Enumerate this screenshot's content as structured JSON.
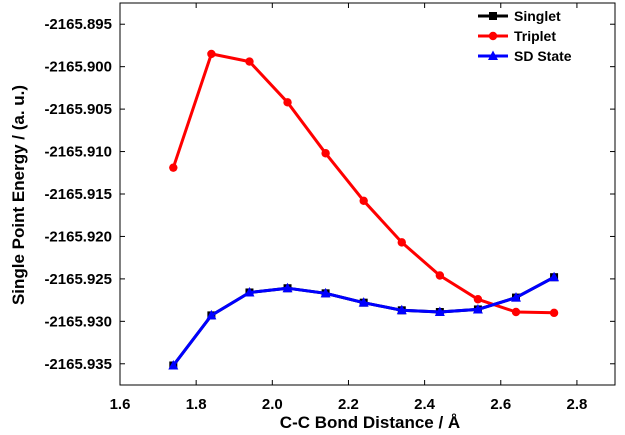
{
  "chart_data": {
    "type": "line",
    "xlabel": "C-C Bond Distance / Å",
    "ylabel": "Single Point Energy / (a. u.)",
    "xlim": [
      1.6,
      2.9
    ],
    "ylim": [
      -2165.9375,
      -2165.8925
    ],
    "xticks": [
      "1.6",
      "1.8",
      "2.0",
      "2.2",
      "2.4",
      "2.6",
      "2.8"
    ],
    "yticks": [
      "-2165.895",
      "-2165.900",
      "-2165.905",
      "-2165.910",
      "-2165.915",
      "-2165.920",
      "-2165.925",
      "-2165.930",
      "-2165.935"
    ],
    "legend_position": "top-right",
    "grid": false,
    "series": [
      {
        "name": "Singlet",
        "color": "#000000",
        "marker": "square",
        "x": [
          1.74,
          1.84,
          1.94,
          2.04,
          2.14,
          2.24,
          2.34,
          2.44,
          2.54,
          2.64,
          2.74
        ],
        "y": [
          -2165.9352,
          -2165.9293,
          -2165.9266,
          -2165.9261,
          -2165.9267,
          -2165.9278,
          -2165.9287,
          -2165.9289,
          -2165.9286,
          -2165.9272,
          -2165.9248
        ]
      },
      {
        "name": "Triplet",
        "color": "#ff0000",
        "marker": "circle",
        "x": [
          1.74,
          1.84,
          1.94,
          2.04,
          2.14,
          2.24,
          2.34,
          2.44,
          2.54,
          2.64,
          2.74
        ],
        "y": [
          -2165.9119,
          -2165.8985,
          -2165.8994,
          -2165.9042,
          -2165.9102,
          -2165.9158,
          -2165.9207,
          -2165.9246,
          -2165.9274,
          -2165.9289,
          -2165.929
        ]
      },
      {
        "name": "SD State",
        "color": "#0000ff",
        "marker": "triangle",
        "x": [
          1.74,
          1.84,
          1.94,
          2.04,
          2.14,
          2.24,
          2.34,
          2.44,
          2.54,
          2.64,
          2.74
        ],
        "y": [
          -2165.9352,
          -2165.9293,
          -2165.9266,
          -2165.9261,
          -2165.9267,
          -2165.9278,
          -2165.9287,
          -2165.9289,
          -2165.9286,
          -2165.9272,
          -2165.9248
        ]
      }
    ]
  }
}
